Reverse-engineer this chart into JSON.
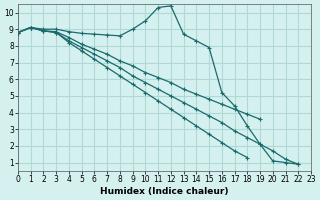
{
  "xlabel": "Humidex (Indice chaleur)",
  "background_color": "#d4f0ef",
  "grid_color": "#b0d8d6",
  "line_color": "#1a6b6b",
  "xlim": [
    0,
    23
  ],
  "ylim": [
    0.5,
    10.5
  ],
  "xticks": [
    0,
    1,
    2,
    3,
    4,
    5,
    6,
    7,
    8,
    9,
    10,
    11,
    12,
    13,
    14,
    15,
    16,
    17,
    18,
    19,
    20,
    21,
    22,
    23
  ],
  "yticks": [
    1,
    2,
    3,
    4,
    5,
    6,
    7,
    8,
    9,
    10
  ],
  "series": [
    {
      "x": [
        0,
        1,
        2,
        3,
        4,
        5,
        6,
        7,
        8,
        9,
        10,
        11,
        12,
        13,
        14,
        15,
        16,
        17,
        18,
        19,
        20,
        21,
        22
      ],
      "y": [
        8.8,
        9.1,
        9.0,
        9.0,
        8.85,
        8.75,
        8.7,
        8.65,
        8.6,
        9.0,
        9.5,
        10.3,
        10.4,
        8.7,
        8.3,
        7.9,
        5.2,
        4.4,
        3.2,
        2.1,
        1.1,
        1.0,
        0.9
      ]
    },
    {
      "x": [
        0,
        1,
        2,
        3,
        4,
        5,
        6,
        7,
        8,
        9,
        10,
        11,
        12,
        13,
        14,
        15,
        16,
        17,
        18,
        19
      ],
      "y": [
        8.8,
        9.1,
        8.9,
        8.85,
        8.5,
        8.1,
        7.8,
        7.5,
        7.1,
        6.8,
        6.4,
        6.1,
        5.8,
        5.4,
        5.1,
        4.8,
        4.5,
        4.2,
        3.9,
        3.6
      ]
    },
    {
      "x": [
        0,
        1,
        2,
        3,
        4,
        5,
        6,
        7,
        8,
        9,
        10,
        11,
        12,
        13,
        14,
        15,
        16,
        17,
        18,
        19,
        20,
        21,
        22
      ],
      "y": [
        8.8,
        9.1,
        8.9,
        8.8,
        8.3,
        7.9,
        7.5,
        7.1,
        6.7,
        6.2,
        5.8,
        5.4,
        5.0,
        4.6,
        4.2,
        3.8,
        3.4,
        2.9,
        2.5,
        2.1,
        1.7,
        1.2,
        0.9
      ]
    },
    {
      "x": [
        0,
        1,
        2,
        3,
        4,
        5,
        6,
        7,
        8,
        9,
        10,
        11,
        12,
        13,
        14,
        15,
        16,
        17,
        18
      ],
      "y": [
        8.8,
        9.1,
        8.9,
        8.8,
        8.2,
        7.7,
        7.2,
        6.7,
        6.2,
        5.7,
        5.2,
        4.7,
        4.2,
        3.7,
        3.2,
        2.7,
        2.2,
        1.7,
        1.3
      ]
    }
  ]
}
